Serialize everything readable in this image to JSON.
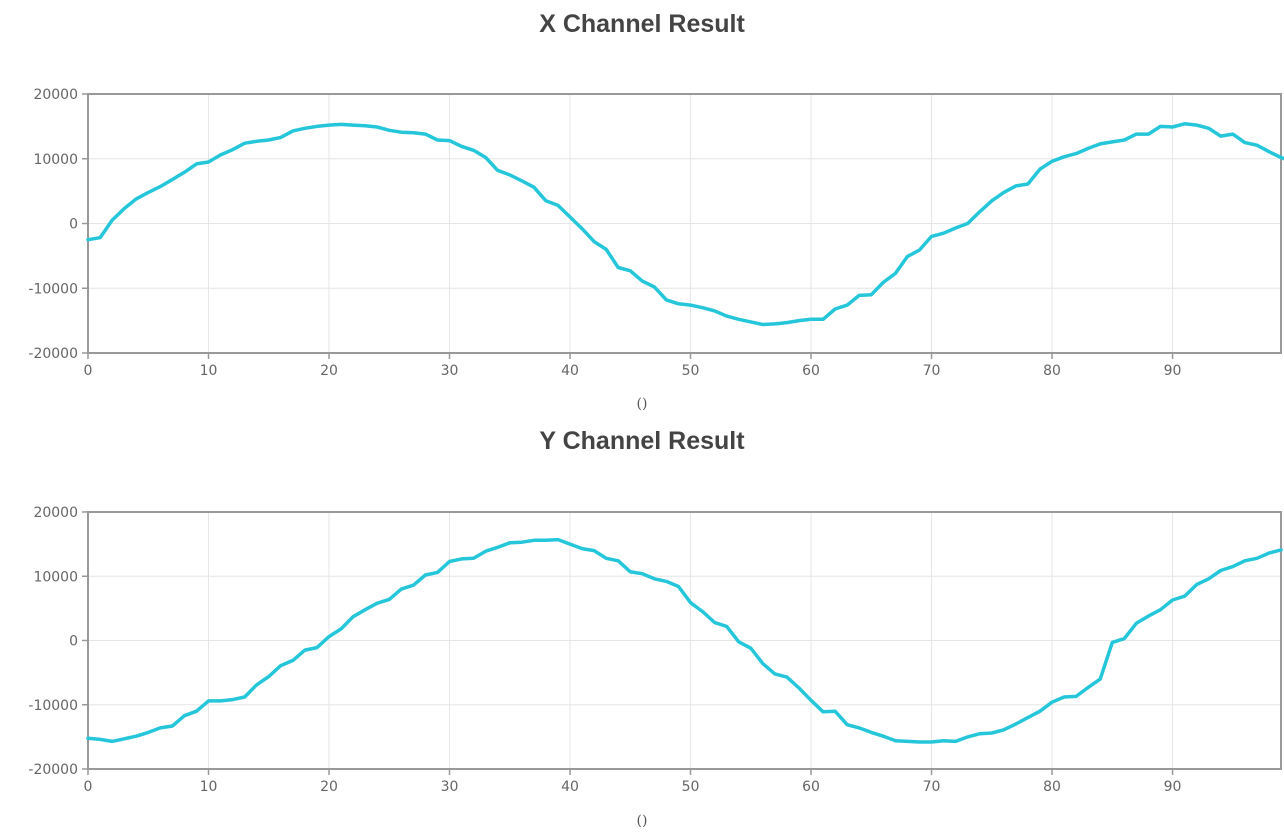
{
  "chart_data": [
    {
      "type": "line",
      "title": "X Channel Result",
      "xlabel": "()",
      "ylabel": "",
      "xlim": [
        0,
        99
      ],
      "ylim": [
        -20000,
        20000
      ],
      "xticks": [
        0,
        10,
        20,
        30,
        40,
        50,
        60,
        70,
        80,
        90
      ],
      "yticks": [
        -20000,
        -10000,
        0,
        10000,
        20000
      ],
      "grid": true,
      "color": "#26c6da",
      "series": [
        {
          "values": [
            -2500,
            -2200,
            500,
            2300,
            3800,
            4800,
            5700,
            6800,
            7900,
            9200,
            9500,
            10600,
            11400,
            12400,
            12700,
            12900,
            13300,
            14300,
            14700,
            15000,
            15200,
            15300,
            15200,
            15100,
            14900,
            14400,
            14100,
            14000,
            13800,
            12900,
            12800,
            11900,
            11300,
            10200,
            8200,
            7500,
            6600,
            5600,
            3500,
            2800,
            1000,
            -800,
            -2800,
            -4000,
            -6800,
            -7300,
            -8900,
            -9800,
            -11800,
            -12400,
            -12600,
            -13000,
            -13500,
            -14300,
            -14800,
            -15200,
            -15600,
            -15500,
            -15300,
            -15000,
            -14800,
            -14800,
            -13200,
            -12600,
            -11100,
            -11000,
            -9100,
            -7700,
            -5100,
            -4100,
            -2000,
            -1500,
            -700,
            0,
            1800,
            3500,
            4800,
            5800,
            6100,
            8400,
            9600,
            10300,
            10800,
            11600,
            12300,
            12600,
            12900,
            13800,
            13800,
            15000,
            14900,
            15400,
            15200,
            14700,
            13500,
            13800,
            12500,
            12100,
            11100,
            10200,
            9500
          ]
        }
      ]
    },
    {
      "type": "line",
      "title": "Y Channel Result",
      "xlabel": "()",
      "ylabel": "",
      "xlim": [
        0,
        99
      ],
      "ylim": [
        -20000,
        20000
      ],
      "xticks": [
        0,
        10,
        20,
        30,
        40,
        50,
        60,
        70,
        80,
        90
      ],
      "yticks": [
        -20000,
        -10000,
        0,
        10000,
        20000
      ],
      "grid": true,
      "color": "#26c6da",
      "series": [
        {
          "values": [
            -15200,
            -15400,
            -15700,
            -15300,
            -14900,
            -14300,
            -13600,
            -13300,
            -11700,
            -11000,
            -9400,
            -9400,
            -9200,
            -8800,
            -6900,
            -5600,
            -3900,
            -3100,
            -1500,
            -1100,
            600,
            1800,
            3700,
            4800,
            5800,
            6400,
            8000,
            8600,
            10200,
            10600,
            12300,
            12700,
            12800,
            13900,
            14500,
            15200,
            15300,
            15600,
            15600,
            15700,
            15000,
            14300,
            14000,
            12800,
            12400,
            10700,
            10400,
            9600,
            9200,
            8400,
            5900,
            4500,
            2800,
            2200,
            -200,
            -1200,
            -3600,
            -5200,
            -5700,
            -7400,
            -9300,
            -11100,
            -11000,
            -13100,
            -13600,
            -14300,
            -14900,
            -15600,
            -15700,
            -15800,
            -15800,
            -15600,
            -15700,
            -15000,
            -14500,
            -14400,
            -13900,
            -13000,
            -12000,
            -11000,
            -9600,
            -8800,
            -8700,
            -7300,
            -6000,
            -300,
            300,
            2700,
            3800,
            4800,
            6300,
            6900,
            8700,
            9600,
            10900,
            11500,
            12400,
            12800,
            13600,
            14100
          ]
        }
      ]
    }
  ]
}
